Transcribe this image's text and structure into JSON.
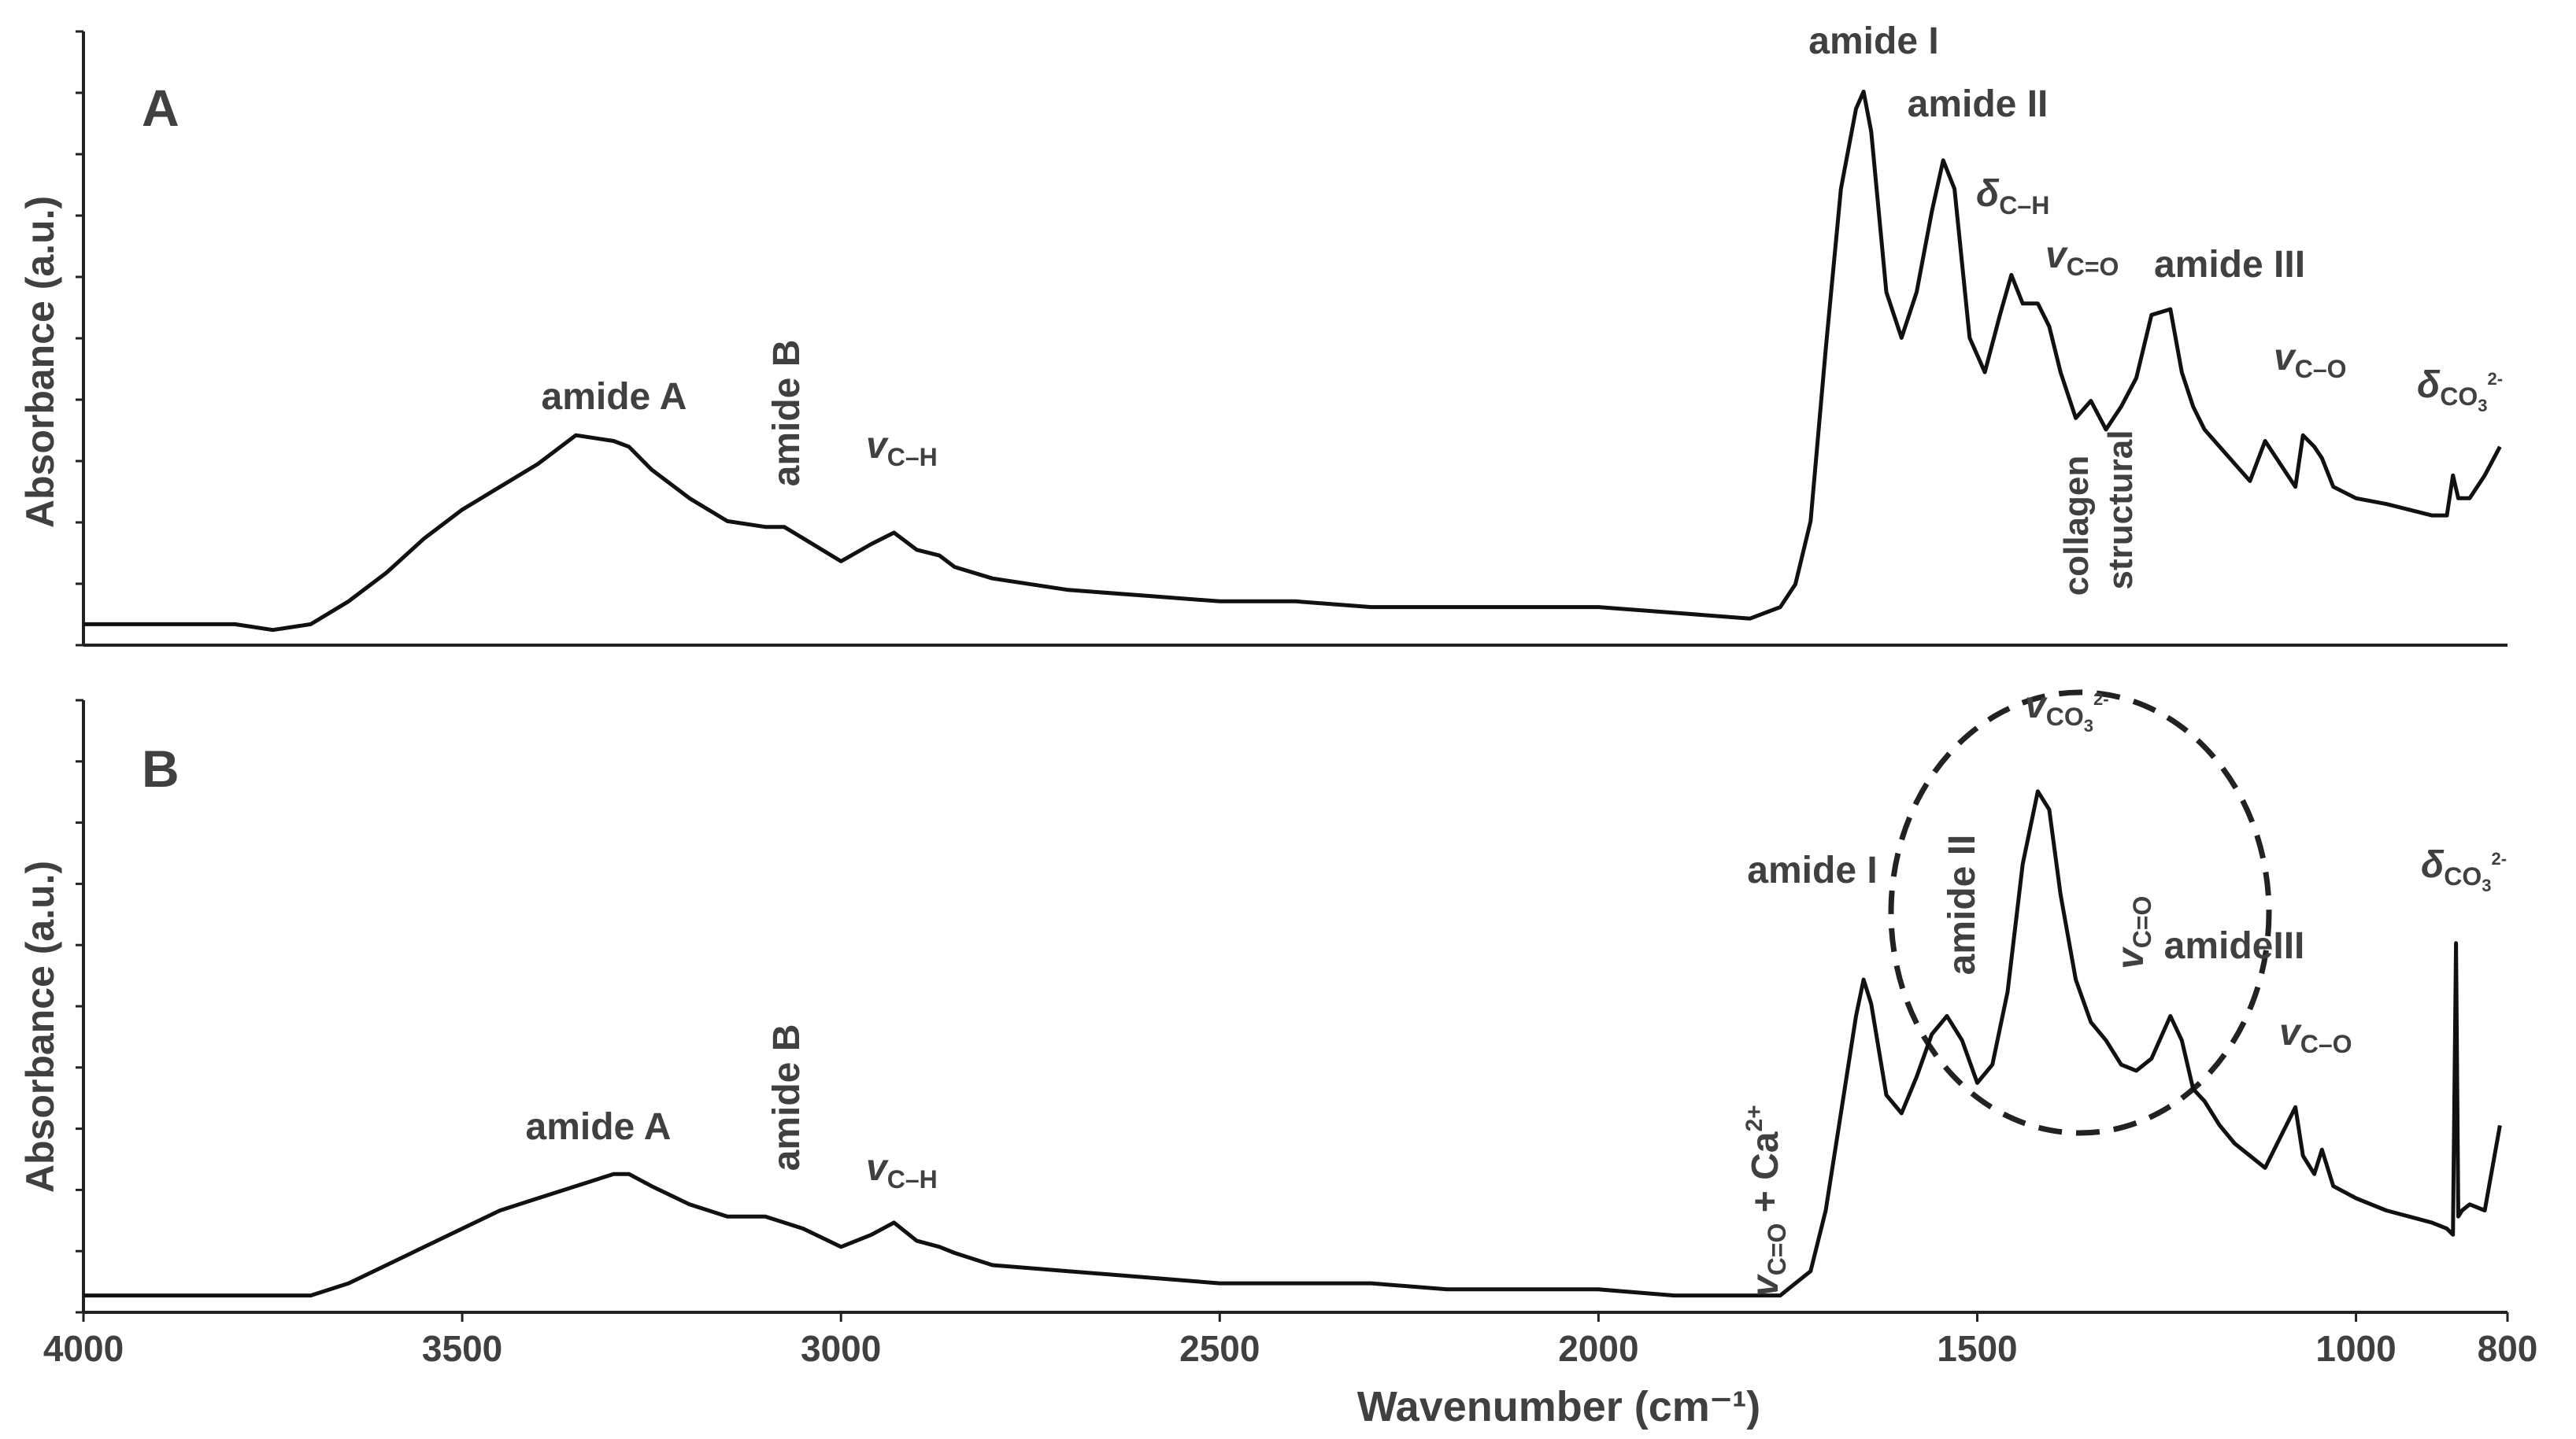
{
  "chart_data": [
    {
      "panel": "A",
      "type": "line",
      "ylabel": "Absorbance (a.u.)",
      "xlim": [
        4000,
        800
      ],
      "ylim": [
        0,
        1
      ],
      "x": [
        4000,
        3900,
        3800,
        3750,
        3700,
        3650,
        3600,
        3550,
        3500,
        3450,
        3400,
        3350,
        3300,
        3280,
        3250,
        3200,
        3150,
        3100,
        3075,
        3050,
        3000,
        2960,
        2930,
        2900,
        2870,
        2850,
        2800,
        2700,
        2600,
        2500,
        2400,
        2300,
        2200,
        2100,
        2000,
        1900,
        1800,
        1760,
        1740,
        1720,
        1700,
        1680,
        1660,
        1650,
        1640,
        1620,
        1600,
        1580,
        1560,
        1545,
        1530,
        1510,
        1490,
        1470,
        1455,
        1440,
        1420,
        1405,
        1390,
        1370,
        1350,
        1330,
        1310,
        1290,
        1270,
        1245,
        1230,
        1215,
        1200,
        1180,
        1160,
        1140,
        1120,
        1100,
        1080,
        1070,
        1055,
        1045,
        1030,
        1000,
        960,
        930,
        900,
        880,
        872,
        865,
        850,
        830,
        810
      ],
      "y": [
        0.02,
        0.02,
        0.02,
        0.01,
        0.02,
        0.06,
        0.11,
        0.17,
        0.22,
        0.26,
        0.3,
        0.35,
        0.34,
        0.33,
        0.29,
        0.24,
        0.2,
        0.19,
        0.19,
        0.17,
        0.13,
        0.16,
        0.18,
        0.15,
        0.14,
        0.12,
        0.1,
        0.08,
        0.07,
        0.06,
        0.06,
        0.05,
        0.05,
        0.05,
        0.05,
        0.04,
        0.03,
        0.05,
        0.09,
        0.2,
        0.5,
        0.78,
        0.92,
        0.95,
        0.88,
        0.6,
        0.52,
        0.6,
        0.74,
        0.83,
        0.78,
        0.52,
        0.46,
        0.56,
        0.63,
        0.58,
        0.58,
        0.54,
        0.46,
        0.38,
        0.41,
        0.36,
        0.4,
        0.45,
        0.56,
        0.57,
        0.46,
        0.4,
        0.36,
        0.33,
        0.3,
        0.27,
        0.34,
        0.3,
        0.26,
        0.35,
        0.33,
        0.31,
        0.26,
        0.24,
        0.23,
        0.22,
        0.21,
        0.21,
        0.28,
        0.24,
        0.24,
        0.28,
        0.33
      ]
    },
    {
      "panel": "B",
      "type": "line",
      "ylabel": "Absorbance (a.u.)",
      "xlabel": "Wavenumber (cm⁻¹)",
      "xticks": [
        4000,
        3500,
        3000,
        2500,
        2000,
        1500,
        1000,
        800
      ],
      "xlim": [
        4000,
        800
      ],
      "ylim": [
        0,
        1
      ],
      "x": [
        4000,
        3900,
        3800,
        3750,
        3700,
        3650,
        3600,
        3550,
        3500,
        3450,
        3400,
        3350,
        3300,
        3280,
        3250,
        3200,
        3150,
        3100,
        3075,
        3050,
        3000,
        2960,
        2930,
        2900,
        2870,
        2850,
        2800,
        2700,
        2600,
        2500,
        2400,
        2300,
        2200,
        2100,
        2000,
        1900,
        1800,
        1760,
        1740,
        1720,
        1700,
        1680,
        1660,
        1650,
        1640,
        1620,
        1600,
        1580,
        1560,
        1540,
        1520,
        1500,
        1480,
        1460,
        1440,
        1420,
        1405,
        1390,
        1370,
        1350,
        1330,
        1310,
        1290,
        1270,
        1245,
        1230,
        1215,
        1200,
        1180,
        1160,
        1140,
        1120,
        1100,
        1080,
        1070,
        1055,
        1045,
        1030,
        1000,
        960,
        930,
        900,
        880,
        872,
        868,
        865,
        860,
        850,
        830,
        810
      ],
      "y": [
        0.02,
        0.02,
        0.02,
        0.02,
        0.02,
        0.04,
        0.07,
        0.1,
        0.13,
        0.16,
        0.18,
        0.2,
        0.22,
        0.22,
        0.2,
        0.17,
        0.15,
        0.15,
        0.14,
        0.13,
        0.1,
        0.12,
        0.14,
        0.11,
        0.1,
        0.09,
        0.07,
        0.06,
        0.05,
        0.04,
        0.04,
        0.04,
        0.03,
        0.03,
        0.03,
        0.02,
        0.02,
        0.02,
        0.04,
        0.06,
        0.16,
        0.32,
        0.48,
        0.54,
        0.5,
        0.35,
        0.32,
        0.38,
        0.45,
        0.48,
        0.44,
        0.37,
        0.4,
        0.52,
        0.73,
        0.85,
        0.82,
        0.68,
        0.54,
        0.47,
        0.44,
        0.4,
        0.39,
        0.41,
        0.48,
        0.44,
        0.36,
        0.34,
        0.3,
        0.27,
        0.25,
        0.23,
        0.28,
        0.33,
        0.25,
        0.22,
        0.26,
        0.2,
        0.18,
        0.16,
        0.15,
        0.14,
        0.13,
        0.12,
        0.6,
        0.15,
        0.16,
        0.17,
        0.16,
        0.3
      ]
    }
  ],
  "panel_a": {
    "letter": "A",
    "ylabel": "Absorbance (a.u.)",
    "annotations": {
      "amide_a": "amide A",
      "amide_b": "amide B",
      "nu_ch_sym": "v",
      "nu_ch_sub": "C–H",
      "amide_i": "amide I",
      "amide_ii": "amide II",
      "delta_ch_sym": "δ",
      "delta_ch_sub": "C–H",
      "nu_c_o_double_sym": "v",
      "nu_c_o_double_sub": "C=O",
      "amide_iii": "amide III",
      "collagen_line1": "collagen",
      "collagen_line2": "structural",
      "nu_c_o_single_sym": "v",
      "nu_c_o_single_sub": "C–O",
      "delta_co3_sym": "δ",
      "delta_co3_sub": "CO",
      "delta_co3_subsub": "3",
      "delta_co3_sup": "2-"
    }
  },
  "panel_b": {
    "letter": "B",
    "ylabel": "Absorbance (a.u.)",
    "annotations": {
      "amide_a": "amide A",
      "amide_b": "amide B",
      "nu_ch_sym": "v",
      "nu_ch_sub": "C–H",
      "nu_co_ca_sym": "v",
      "nu_co_ca_sub": "C=O",
      "nu_co_ca_rest": " + Ca",
      "nu_co_ca_sup": "2+",
      "amide_i": "amide I",
      "amide_ii": "amide II",
      "nu_co3_sym": "v",
      "nu_co3_sub": "CO",
      "nu_co3_subsub": "3",
      "nu_co3_sup": "2-",
      "nu_c_o_double_sym": "v",
      "nu_c_o_double_sub": "C=O",
      "amide_iii": "amideIII",
      "nu_c_o_single_sym": "v",
      "nu_c_o_single_sub": "C–O",
      "delta_co3_sym": "δ",
      "delta_co3_sub": "CO",
      "delta_co3_subsub": "3",
      "delta_co3_sup": "2-"
    }
  },
  "x_axis": {
    "label": "Wavenumber (cm⁻¹)",
    "ticks": [
      "4000",
      "3500",
      "3000",
      "2500",
      "2000",
      "1500",
      "1000",
      "800"
    ]
  }
}
